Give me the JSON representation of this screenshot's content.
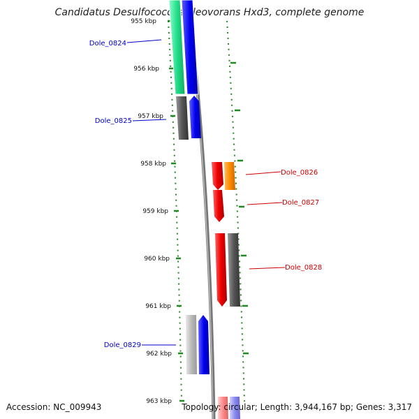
{
  "title": "Candidatus Desulfococcus oleovorans Hxd3, complete genome",
  "ticks": [
    "955 kbp",
    "956 kbp",
    "957 kbp",
    "958 kbp",
    "959 kbp",
    "960 kbp",
    "961 kbp",
    "962 kbp",
    "963 kbp"
  ],
  "genes": [
    {
      "id": "Dole_0824",
      "color": "#0000cc"
    },
    {
      "id": "Dole_0825",
      "color": "#0000cc"
    },
    {
      "id": "Dole_0826",
      "color": "#cc0000"
    },
    {
      "id": "Dole_0827",
      "color": "#cc0000"
    },
    {
      "id": "Dole_0828",
      "color": "#cc0000"
    },
    {
      "id": "Dole_0829",
      "color": "#0000cc"
    }
  ],
  "footer": {
    "accession": "Accession: NC_009943",
    "summary": "Topology: circular; Length: 3,944,167 bp; Genes: 3,317"
  },
  "colors": {
    "cds_forward": "#0000ee",
    "cds_reverse": "#ee0000",
    "rna": "#ff8c00",
    "other_gene": "#555555",
    "pseudo": "#bbbbbb",
    "top_feature": "#22dd88",
    "backbone": "#888888",
    "tick": "#228822"
  }
}
